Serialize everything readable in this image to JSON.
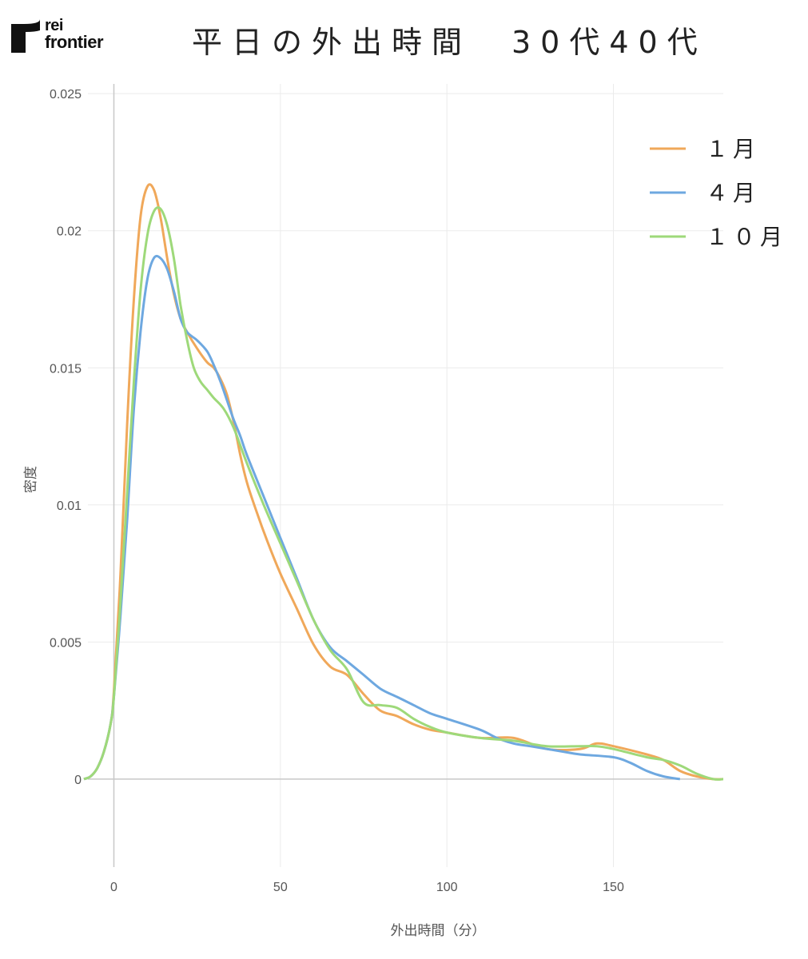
{
  "logo": {
    "line1": "rei",
    "line2": "frontier"
  },
  "chart_data": {
    "type": "line",
    "title": "平日の外出時間　30代40代",
    "xlabel": "外出時間（分）",
    "ylabel": "密度",
    "xlim": [
      -9,
      183
    ],
    "ylim": [
      -0.0035,
      0.0255
    ],
    "xticks": [
      0,
      50,
      100,
      150
    ],
    "xtick_labels": [
      "0",
      "50",
      "100",
      "150"
    ],
    "yticks": [
      0,
      0.005,
      0.01,
      0.015,
      0.02,
      0.025
    ],
    "ytick_labels": [
      "0",
      "0.005",
      "0.01",
      "0.015",
      "0.02",
      "0.025"
    ],
    "grid": true,
    "legend_position": "top-right",
    "series": [
      {
        "name": "１月",
        "color": "#f0a85a",
        "x": [
          -9,
          -7,
          -5,
          -3,
          -1,
          0,
          2,
          4,
          6,
          8,
          10,
          12,
          14,
          16,
          18,
          20,
          22,
          25,
          28,
          30,
          32,
          34,
          36,
          38,
          40,
          43,
          46,
          50,
          55,
          60,
          65,
          70,
          75,
          80,
          85,
          90,
          95,
          100,
          110,
          120,
          130,
          140,
          145,
          150,
          160,
          165,
          170,
          175,
          180,
          183
        ],
        "y": [
          0,
          0.0001,
          0.0004,
          0.001,
          0.002,
          0.0032,
          0.0075,
          0.013,
          0.0175,
          0.0205,
          0.0216,
          0.0215,
          0.0205,
          0.019,
          0.0177,
          0.0168,
          0.0163,
          0.0157,
          0.0152,
          0.015,
          0.0146,
          0.014,
          0.013,
          0.0118,
          0.0108,
          0.0097,
          0.0087,
          0.0075,
          0.0062,
          0.0049,
          0.0041,
          0.0038,
          0.0031,
          0.0025,
          0.0023,
          0.002,
          0.0018,
          0.0017,
          0.0015,
          0.0015,
          0.0011,
          0.0011,
          0.0013,
          0.0012,
          0.0009,
          0.0007,
          0.0003,
          0.0001,
          0,
          0
        ]
      },
      {
        "name": "４月",
        "color": "#6ea8e0",
        "x": [
          -9,
          -7,
          -5,
          -3,
          -1,
          0,
          2,
          4,
          6,
          8,
          10,
          12,
          14,
          16,
          18,
          20,
          22,
          25,
          28,
          30,
          32,
          34,
          36,
          38,
          40,
          45,
          50,
          55,
          60,
          65,
          70,
          75,
          80,
          85,
          90,
          95,
          100,
          110,
          115,
          120,
          125,
          130,
          135,
          140,
          150,
          155,
          160,
          165,
          170
        ],
        "y": [
          0,
          0.0001,
          0.0004,
          0.001,
          0.002,
          0.003,
          0.006,
          0.0095,
          0.0135,
          0.0163,
          0.0182,
          0.019,
          0.019,
          0.0186,
          0.0178,
          0.0168,
          0.0163,
          0.016,
          0.0156,
          0.0151,
          0.0145,
          0.0138,
          0.0131,
          0.0125,
          0.0118,
          0.0103,
          0.0088,
          0.0073,
          0.0058,
          0.0048,
          0.0043,
          0.0038,
          0.0033,
          0.003,
          0.0027,
          0.0024,
          0.0022,
          0.0018,
          0.0015,
          0.0013,
          0.0012,
          0.0011,
          0.001,
          0.0009,
          0.0008,
          0.0006,
          0.0003,
          0.0001,
          0
        ]
      },
      {
        "name": "１０月",
        "color": "#9ed97a",
        "x": [
          -9,
          -7,
          -5,
          -3,
          -1,
          0,
          2,
          4,
          6,
          8,
          10,
          12,
          14,
          16,
          18,
          20,
          22,
          24,
          26,
          28,
          30,
          33,
          36,
          40,
          45,
          50,
          55,
          60,
          65,
          70,
          75,
          80,
          85,
          90,
          95,
          100,
          110,
          120,
          130,
          140,
          145,
          150,
          160,
          165,
          170,
          175,
          180,
          183
        ],
        "y": [
          0,
          0.0001,
          0.0004,
          0.001,
          0.002,
          0.003,
          0.0065,
          0.0105,
          0.0145,
          0.0178,
          0.0198,
          0.0207,
          0.0208,
          0.0202,
          0.019,
          0.0173,
          0.016,
          0.015,
          0.0145,
          0.0142,
          0.0139,
          0.0135,
          0.0128,
          0.0115,
          0.01,
          0.0086,
          0.0072,
          0.0058,
          0.0047,
          0.004,
          0.0028,
          0.0027,
          0.0026,
          0.0022,
          0.0019,
          0.0017,
          0.0015,
          0.0014,
          0.0012,
          0.0012,
          0.0012,
          0.0011,
          0.0008,
          0.0007,
          0.0005,
          0.0002,
          0,
          0
        ]
      }
    ]
  }
}
